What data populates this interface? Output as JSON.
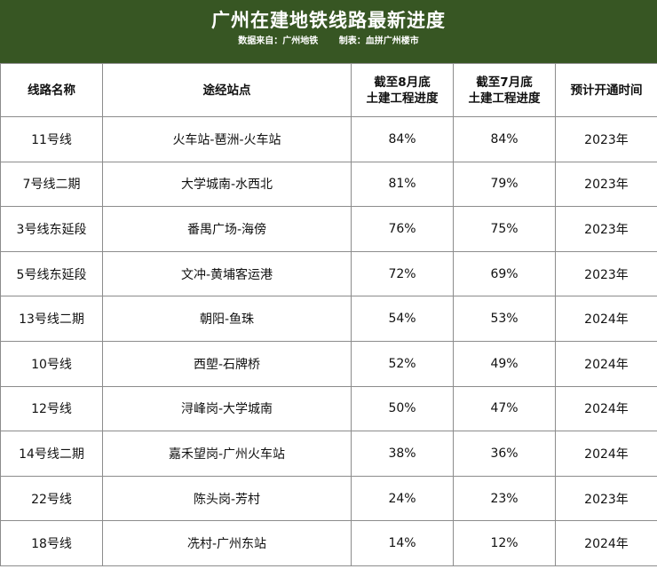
{
  "header": {
    "title": "广州在建地铁线路最新进度",
    "source": "数据来自：广州地铁",
    "maker": "制表：血拼广州楼市"
  },
  "table": {
    "columns": [
      {
        "line1": "线路名称",
        "line2": ""
      },
      {
        "line1": "途经站点",
        "line2": ""
      },
      {
        "line1": "截至8月底",
        "line2": "土建工程进度"
      },
      {
        "line1": "截至7月底",
        "line2": "土建工程进度"
      },
      {
        "line1": "预计开通时间",
        "line2": ""
      }
    ],
    "rows": [
      {
        "line": "11号线",
        "stations": "火车站-琶洲-火车站",
        "aug": "84%",
        "jul": "84%",
        "open": "2023年"
      },
      {
        "line": "7号线二期",
        "stations": "大学城南-水西北",
        "aug": "81%",
        "jul": "79%",
        "open": "2023年"
      },
      {
        "line": "3号线东延段",
        "stations": "番禺广场-海傍",
        "aug": "76%",
        "jul": "75%",
        "open": "2023年"
      },
      {
        "line": "5号线东延段",
        "stations": "文冲-黄埔客运港",
        "aug": "72%",
        "jul": "69%",
        "open": "2023年"
      },
      {
        "line": "13号线二期",
        "stations": "朝阳-鱼珠",
        "aug": "54%",
        "jul": "53%",
        "open": "2024年"
      },
      {
        "line": "10号线",
        "stations": "西塱-石牌桥",
        "aug": "52%",
        "jul": "49%",
        "open": "2024年"
      },
      {
        "line": "12号线",
        "stations": "浔峰岗-大学城南",
        "aug": "50%",
        "jul": "47%",
        "open": "2024年"
      },
      {
        "line": "14号线二期",
        "stations": "嘉禾望岗-广州火车站",
        "aug": "38%",
        "jul": "36%",
        "open": "2024年"
      },
      {
        "line": "22号线",
        "stations": "陈头岗-芳村",
        "aug": "24%",
        "jul": "23%",
        "open": "2023年"
      },
      {
        "line": "18号线",
        "stations": "冼村-广州东站",
        "aug": "14%",
        "jul": "12%",
        "open": "2024年"
      }
    ]
  },
  "colors": {
    "header_bg": "#375623",
    "border": "#8c8c8c"
  }
}
